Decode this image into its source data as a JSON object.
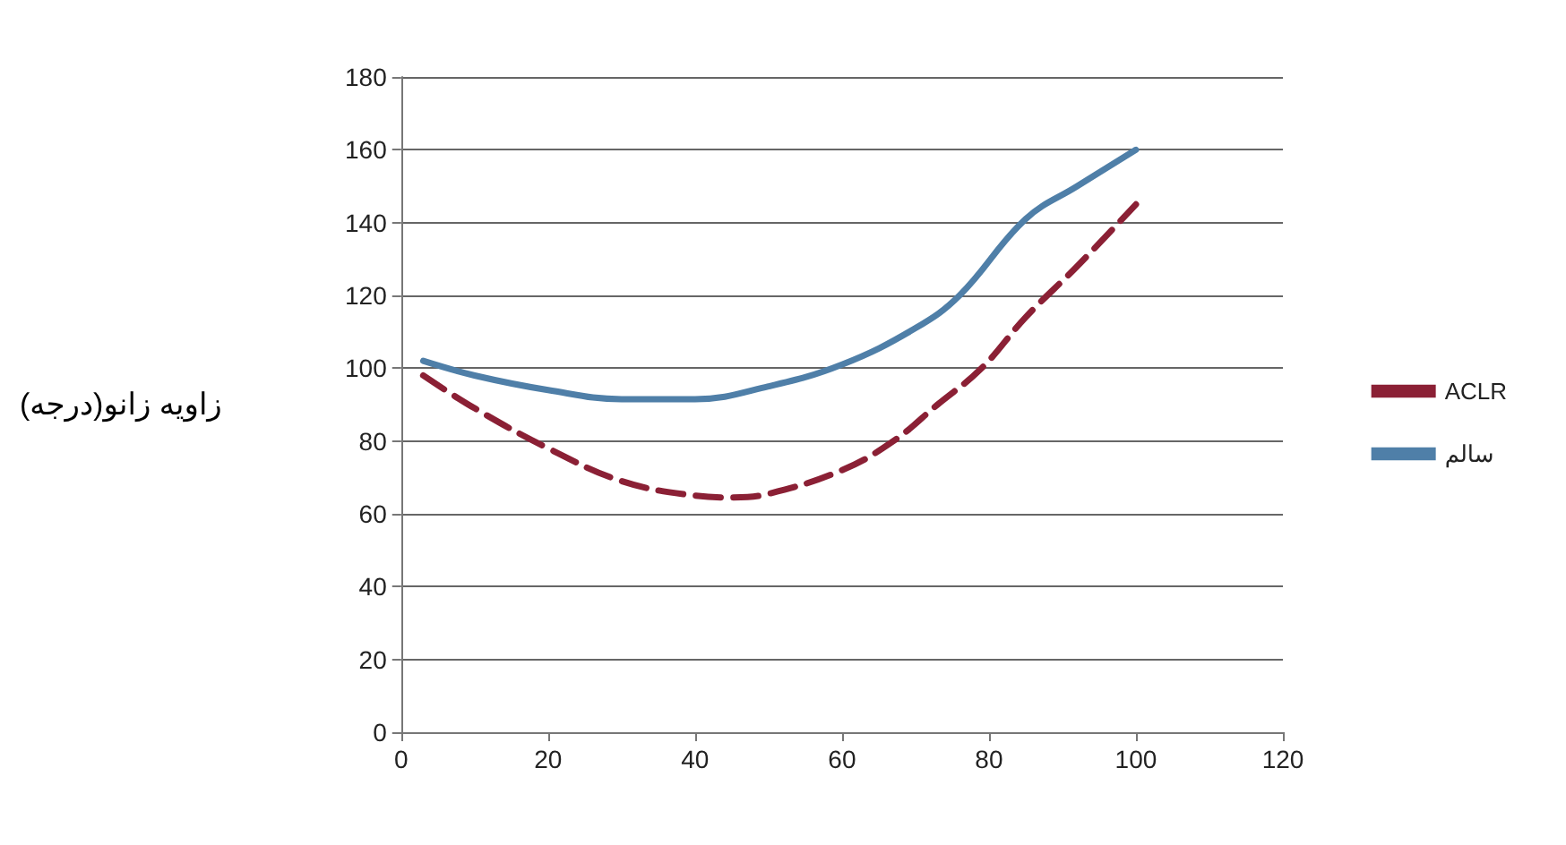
{
  "chart_data": {
    "type": "line",
    "ylabel": "زاویه زانو(درجه)",
    "xlim": [
      0,
      120
    ],
    "xticks": [
      0,
      20,
      40,
      60,
      80,
      100,
      120
    ],
    "ylim": [
      0,
      180
    ],
    "yticks": [
      0,
      20,
      40,
      60,
      80,
      100,
      120,
      140,
      160,
      180
    ],
    "grid": "y",
    "legend": "right",
    "marker": "none",
    "series": [
      {
        "name": "ACLR",
        "color": "#8b2035",
        "line_style": "dashed",
        "x": [
          3,
          10,
          20,
          30,
          40,
          45,
          50,
          60,
          67,
          73,
          79,
          85,
          92,
          100
        ],
        "values": [
          98,
          89,
          78,
          69,
          65,
          64.5,
          65.5,
          72,
          80,
          90,
          100,
          114,
          128,
          145
        ]
      },
      {
        "name": "سالم",
        "color": "#4f7fa8",
        "line_style": "solid",
        "x": [
          3,
          10,
          20,
          30,
          40,
          50,
          60,
          70,
          76,
          85,
          92,
          100
        ],
        "values": [
          102,
          98,
          94,
          91.5,
          91.5,
          95,
          101,
          111,
          120,
          141,
          150,
          160
        ]
      }
    ]
  }
}
